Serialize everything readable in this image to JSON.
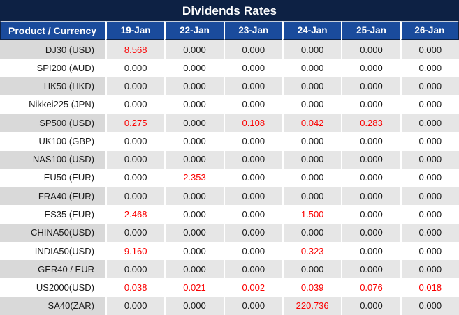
{
  "colors": {
    "title_bar_bg": "#0D2144",
    "header_bg": "#1A4B9C",
    "header_text": "#FFFFFF",
    "row_gray_product": "#D9D9D9",
    "row_gray_value": "#E6E6E6",
    "row_white": "#FFFFFF",
    "value_text": "#1A1A1A",
    "value_red": "#FA0000",
    "separator_white": "#FFFFFF"
  },
  "chart_data": {
    "type": "table",
    "title": "Dividends Rates",
    "product_header": "Product / Currency",
    "date_headers": [
      "19-Jan",
      "22-Jan",
      "23-Jan",
      "24-Jan",
      "25-Jan",
      "26-Jan"
    ],
    "rows": [
      {
        "product": "DJ30 (USD)",
        "values": [
          "8.568",
          "0.000",
          "0.000",
          "0.000",
          "0.000",
          "0.000"
        ],
        "red": [
          true,
          false,
          false,
          false,
          false,
          false
        ]
      },
      {
        "product": "SPI200 (AUD)",
        "values": [
          "0.000",
          "0.000",
          "0.000",
          "0.000",
          "0.000",
          "0.000"
        ],
        "red": [
          false,
          false,
          false,
          false,
          false,
          false
        ]
      },
      {
        "product": "HK50 (HKD)",
        "values": [
          "0.000",
          "0.000",
          "0.000",
          "0.000",
          "0.000",
          "0.000"
        ],
        "red": [
          false,
          false,
          false,
          false,
          false,
          false
        ]
      },
      {
        "product": "Nikkei225 (JPN)",
        "values": [
          "0.000",
          "0.000",
          "0.000",
          "0.000",
          "0.000",
          "0.000"
        ],
        "red": [
          false,
          false,
          false,
          false,
          false,
          false
        ]
      },
      {
        "product": "SP500 (USD)",
        "values": [
          "0.275",
          "0.000",
          "0.108",
          "0.042",
          "0.283",
          "0.000"
        ],
        "red": [
          true,
          false,
          true,
          true,
          true,
          false
        ]
      },
      {
        "product": "UK100 (GBP)",
        "values": [
          "0.000",
          "0.000",
          "0.000",
          "0.000",
          "0.000",
          "0.000"
        ],
        "red": [
          false,
          false,
          false,
          false,
          false,
          false
        ]
      },
      {
        "product": "NAS100 (USD)",
        "values": [
          "0.000",
          "0.000",
          "0.000",
          "0.000",
          "0.000",
          "0.000"
        ],
        "red": [
          false,
          false,
          false,
          false,
          false,
          false
        ]
      },
      {
        "product": "EU50 (EUR)",
        "values": [
          "0.000",
          "2.353",
          "0.000",
          "0.000",
          "0.000",
          "0.000"
        ],
        "red": [
          false,
          true,
          false,
          false,
          false,
          false
        ]
      },
      {
        "product": "FRA40 (EUR)",
        "values": [
          "0.000",
          "0.000",
          "0.000",
          "0.000",
          "0.000",
          "0.000"
        ],
        "red": [
          false,
          false,
          false,
          false,
          false,
          false
        ]
      },
      {
        "product": "ES35 (EUR)",
        "values": [
          "2.468",
          "0.000",
          "0.000",
          "1.500",
          "0.000",
          "0.000"
        ],
        "red": [
          true,
          false,
          false,
          true,
          false,
          false
        ]
      },
      {
        "product": "CHINA50(USD)",
        "values": [
          "0.000",
          "0.000",
          "0.000",
          "0.000",
          "0.000",
          "0.000"
        ],
        "red": [
          false,
          false,
          false,
          false,
          false,
          false
        ]
      },
      {
        "product": "INDIA50(USD)",
        "values": [
          "9.160",
          "0.000",
          "0.000",
          "0.323",
          "0.000",
          "0.000"
        ],
        "red": [
          true,
          false,
          false,
          true,
          false,
          false
        ]
      },
      {
        "product": "GER40 / EUR",
        "values": [
          "0.000",
          "0.000",
          "0.000",
          "0.000",
          "0.000",
          "0.000"
        ],
        "red": [
          false,
          false,
          false,
          false,
          false,
          false
        ]
      },
      {
        "product": "US2000(USD)",
        "values": [
          "0.038",
          "0.021",
          "0.002",
          "0.039",
          "0.076",
          "0.018"
        ],
        "red": [
          true,
          true,
          true,
          true,
          true,
          true
        ]
      },
      {
        "product": "SA40(ZAR)",
        "values": [
          "0.000",
          "0.000",
          "0.000",
          "220.736",
          "0.000",
          "0.000"
        ],
        "red": [
          false,
          false,
          false,
          true,
          false,
          false
        ]
      }
    ]
  }
}
